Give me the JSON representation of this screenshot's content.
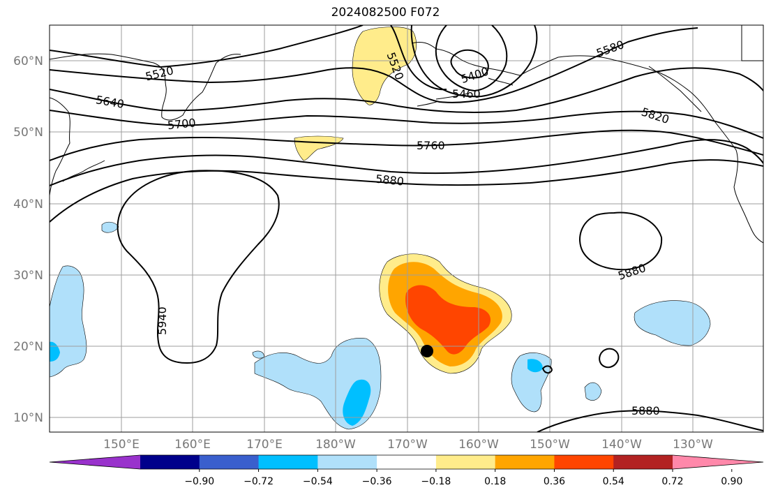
{
  "title": "2024082500 F072",
  "latitude_labels": [
    "60°N",
    "50°N",
    "40°N",
    "30°N",
    "20°N",
    "10°N"
  ],
  "longitude_labels": [
    "150°E",
    "160°E",
    "170°E",
    "180°W",
    "170°W",
    "160°W",
    "150°W",
    "140°W",
    "130°W"
  ],
  "contour_labels": [
    "5520",
    "5520",
    "5400",
    "5460",
    "5580",
    "5640",
    "5700",
    "5760",
    "5820",
    "5880",
    "5880",
    "5880",
    "5940"
  ],
  "colorbar": {
    "tick_labels": [
      "−0.90",
      "−0.72",
      "−0.54",
      "−0.36",
      "−0.18",
      "0.18",
      "0.36",
      "0.54",
      "0.72",
      "0.90"
    ],
    "colors": [
      "#9932cc",
      "#00008b",
      "#3a5fcd",
      "#00bfff",
      "#b0e0fa",
      "#ffffff",
      "#ffec8b",
      "#ffa500",
      "#ff4500",
      "#b22222",
      "#ff88aa"
    ]
  }
}
